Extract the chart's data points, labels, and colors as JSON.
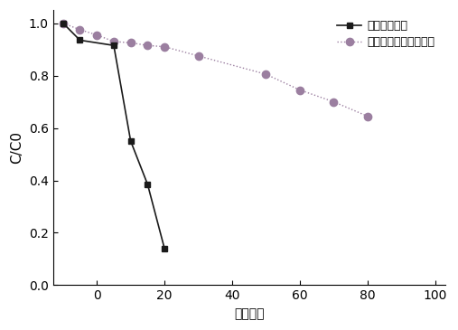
{
  "series1_label": "本发明催化剂",
  "series2_label": "文献方法制备的催化剂",
  "series1_x": [
    -10,
    -5,
    5,
    10,
    15,
    20
  ],
  "series1_y": [
    1.0,
    0.935,
    0.915,
    0.55,
    0.385,
    0.14
  ],
  "series2_x": [
    -10,
    -5,
    0,
    5,
    10,
    15,
    20,
    30,
    50,
    60,
    70,
    80
  ],
  "series2_y": [
    1.0,
    0.975,
    0.955,
    0.93,
    0.925,
    0.915,
    0.91,
    0.875,
    0.805,
    0.745,
    0.7,
    0.645
  ],
  "xlabel": "时间分钟",
  "ylabel": "C/C0",
  "xlim": [
    -13,
    103
  ],
  "ylim": [
    0.0,
    1.05
  ],
  "xticks": [
    0,
    20,
    40,
    60,
    80,
    100
  ],
  "yticks": [
    0.0,
    0.2,
    0.4,
    0.6,
    0.8,
    1.0
  ],
  "series1_color": "#1a1a1a",
  "series2_color": "#9b7fa0",
  "series1_linestyle": "-",
  "series2_linestyle": ":",
  "series1_marker": "s",
  "series2_marker": "o",
  "legend_loc": "upper right",
  "bg_color": "#ffffff"
}
